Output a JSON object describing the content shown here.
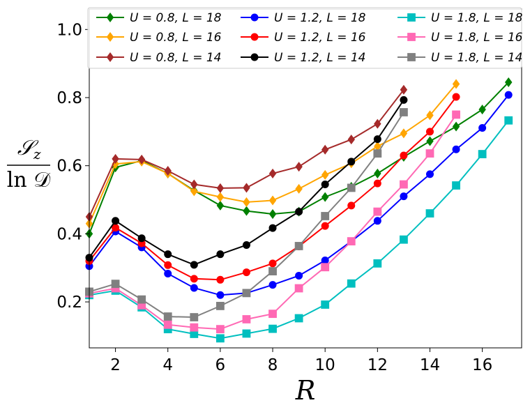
{
  "chart_data": {
    "type": "line",
    "title": "",
    "xlabel": "R",
    "ylabel": "S_z / ln D",
    "ylabel_num": "𝒮",
    "ylabel_num_sub": "z",
    "ylabel_den": "ln 𝒟",
    "xlim": [
      1,
      17.5
    ],
    "ylim": [
      0.065,
      1.06
    ],
    "xticks": [
      2,
      4,
      6,
      8,
      10,
      12,
      14,
      16
    ],
    "xtick_labels": [
      "2",
      "4",
      "6",
      "8",
      "10",
      "12",
      "14",
      "16"
    ],
    "yticks": [
      0.2,
      0.4,
      0.6,
      0.8,
      1.0
    ],
    "ytick_labels": [
      "0.2",
      "0.4",
      "0.6",
      "0.8",
      "1.0"
    ],
    "legend_position": "top, three columns",
    "series": [
      {
        "name": "U = 0.8, L = 18",
        "color": "#008000",
        "marker": "diamond",
        "x": [
          1,
          2,
          3,
          4,
          5,
          6,
          7,
          8,
          9,
          10,
          11,
          12,
          13,
          14,
          15,
          16,
          17
        ],
        "y": [
          0.4,
          0.595,
          0.615,
          0.577,
          0.527,
          0.483,
          0.467,
          0.458,
          0.465,
          0.508,
          0.538,
          0.577,
          0.626,
          0.672,
          0.715,
          0.765,
          0.845
        ]
      },
      {
        "name": "U = 0.8, L = 16",
        "color": "#FFA500",
        "marker": "diamond",
        "x": [
          1,
          2,
          3,
          4,
          5,
          6,
          7,
          8,
          9,
          10,
          11,
          12,
          13,
          14,
          15
        ],
        "y": [
          0.43,
          0.605,
          0.612,
          0.577,
          0.525,
          0.508,
          0.493,
          0.498,
          0.532,
          0.573,
          0.607,
          0.657,
          0.695,
          0.748,
          0.84
        ]
      },
      {
        "name": "U = 0.8, L = 14",
        "color": "#A52A2A",
        "marker": "diamond",
        "x": [
          1,
          2,
          3,
          4,
          5,
          6,
          7,
          8,
          9,
          10,
          11,
          12,
          13
        ],
        "y": [
          0.45,
          0.62,
          0.618,
          0.585,
          0.545,
          0.534,
          0.535,
          0.577,
          0.597,
          0.647,
          0.677,
          0.723,
          0.823
        ]
      },
      {
        "name": "U = 1.2, L = 18",
        "color": "#0000FF",
        "marker": "circle",
        "x": [
          1,
          2,
          3,
          4,
          5,
          6,
          7,
          8,
          9,
          10,
          11,
          12,
          13,
          14,
          15,
          16,
          17
        ],
        "y": [
          0.305,
          0.407,
          0.36,
          0.283,
          0.241,
          0.22,
          0.226,
          0.25,
          0.277,
          0.322,
          0.378,
          0.438,
          0.51,
          0.575,
          0.648,
          0.711,
          0.808
        ]
      },
      {
        "name": "U = 1.2, L = 16",
        "color": "#FF0000",
        "marker": "circle",
        "x": [
          1,
          2,
          3,
          4,
          5,
          6,
          7,
          8,
          9,
          10,
          11,
          12,
          13,
          14,
          15
        ],
        "y": [
          0.32,
          0.418,
          0.372,
          0.308,
          0.268,
          0.265,
          0.287,
          0.313,
          0.363,
          0.423,
          0.483,
          0.548,
          0.63,
          0.7,
          0.802
        ]
      },
      {
        "name": "U = 1.2, L = 14",
        "color": "#000000",
        "marker": "circle",
        "x": [
          1,
          2,
          3,
          4,
          5,
          6,
          7,
          8,
          9,
          10,
          11,
          12,
          13
        ],
        "y": [
          0.33,
          0.438,
          0.387,
          0.34,
          0.309,
          0.34,
          0.367,
          0.417,
          0.465,
          0.545,
          0.612,
          0.678,
          0.793
        ]
      },
      {
        "name": "U = 1.8, L = 18",
        "color": "#00BFBF",
        "marker": "square",
        "x": [
          1,
          2,
          3,
          4,
          5,
          6,
          7,
          8,
          9,
          10,
          11,
          12,
          13,
          14,
          15,
          16,
          17
        ],
        "y": [
          0.22,
          0.233,
          0.184,
          0.12,
          0.106,
          0.093,
          0.107,
          0.121,
          0.152,
          0.192,
          0.254,
          0.313,
          0.383,
          0.46,
          0.542,
          0.634,
          0.733
        ]
      },
      {
        "name": "U = 1.8, L = 16",
        "color": "#FF69B4",
        "marker": "square",
        "x": [
          1,
          2,
          3,
          4,
          5,
          6,
          7,
          8,
          9,
          10,
          11,
          12,
          13,
          14,
          15
        ],
        "y": [
          0.225,
          0.24,
          0.19,
          0.133,
          0.125,
          0.12,
          0.149,
          0.165,
          0.24,
          0.302,
          0.378,
          0.465,
          0.545,
          0.636,
          0.75
        ]
      },
      {
        "name": "U = 1.8, L = 14",
        "color": "#808080",
        "marker": "square",
        "x": [
          1,
          2,
          3,
          4,
          5,
          6,
          7,
          8,
          9,
          10,
          11,
          12,
          13
        ],
        "y": [
          0.23,
          0.253,
          0.207,
          0.157,
          0.155,
          0.188,
          0.226,
          0.29,
          0.364,
          0.452,
          0.535,
          0.636,
          0.757
        ]
      }
    ]
  }
}
